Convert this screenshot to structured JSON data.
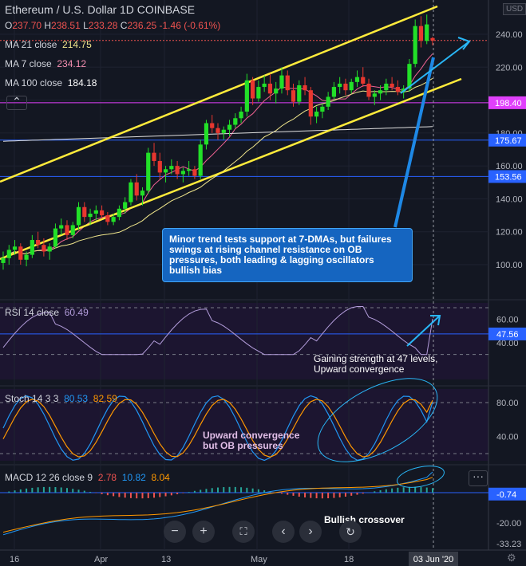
{
  "header": {
    "title": "Ethereum / U.S. Dollar  1D  COINBASE",
    "currency": "USD",
    "ohlc": {
      "o": "237.70",
      "h": "238.51",
      "l": "233.28",
      "c": "236.25",
      "chg": "-1.46 (-0.61%)"
    }
  },
  "indicators": {
    "ma21": {
      "label": "MA 21 close",
      "value": "214.75"
    },
    "ma7": {
      "label": "MA 7 close",
      "value": "234.12"
    },
    "ma100": {
      "label": "MA 100 close",
      "value": "184.18"
    },
    "rsi": {
      "label": "RSI 14 close",
      "value": "60.49"
    },
    "stoch": {
      "label": "Stoch 14 3 3",
      "k": "80.53",
      "d": "82.59"
    },
    "macd": {
      "label": "MACD 12 26 close 9",
      "a": "2.78",
      "b": "10.82",
      "c": "8.04"
    }
  },
  "annotations": {
    "main": "Minor trend tests support at 7-DMAs, but failures swings at rising channel resistance on OB pressures, both leading & lagging oscillators bullish bias",
    "rsi": "Gaining strength at 47 levels, Upward convergence",
    "stoch": "Upward convergence but OB pressures",
    "macd": "Bullish crossover"
  },
  "price_axis": {
    "ticks": [
      "240.00",
      "220.00",
      "200.00",
      "180.00",
      "160.00",
      "140.00",
      "120.00",
      "100.00"
    ],
    "markers": [
      {
        "label": "198.40",
        "color": "#e040fb"
      },
      {
        "label": "175.67",
        "color": "#2962ff"
      },
      {
        "label": "153.56",
        "color": "#2962ff"
      }
    ],
    "last_price": "236.25"
  },
  "rsi_axis": {
    "ticks": [
      "60.00",
      "40.00"
    ],
    "marker": "47.56"
  },
  "stoch_axis": {
    "ticks": [
      "80.00",
      "40.00"
    ]
  },
  "macd_axis": {
    "ticks": [
      "-20.00"
    ],
    "marker": "-0.74",
    "bottom": "-33.23"
  },
  "time_axis": {
    "labels": [
      "16",
      "Apr",
      "13",
      "May",
      "18"
    ],
    "current": "03 Jun '20"
  },
  "controls": [
    "minus",
    "plus",
    "fullscreen",
    "prev",
    "next",
    "reset"
  ],
  "colors": {
    "up": "#26a69a",
    "down": "#ef5350",
    "bull_body": "#22e028",
    "bear_body": "#e8372f",
    "channel": "#ffeb3b",
    "annotation": "#1565c0",
    "cyan": "#29b6f6",
    "rsi": "#b39ddb"
  },
  "chart_data": {
    "type": "candlestick",
    "title": "Ethereum / U.S. Dollar 1D COINBASE",
    "ylim": [
      85,
      255
    ],
    "candles": [
      [
        101,
        108,
        97,
        104
      ],
      [
        104,
        112,
        100,
        109
      ],
      [
        109,
        115,
        106,
        111
      ],
      [
        111,
        113,
        100,
        103
      ],
      [
        103,
        108,
        99,
        106
      ],
      [
        106,
        118,
        104,
        115
      ],
      [
        115,
        120,
        110,
        112
      ],
      [
        112,
        116,
        105,
        108
      ],
      [
        108,
        113,
        103,
        111
      ],
      [
        111,
        125,
        110,
        122
      ],
      [
        122,
        128,
        118,
        124
      ],
      [
        124,
        127,
        115,
        118
      ],
      [
        118,
        126,
        116,
        124
      ],
      [
        124,
        138,
        121,
        135
      ],
      [
        135,
        138,
        126,
        129
      ],
      [
        129,
        134,
        124,
        131
      ],
      [
        131,
        136,
        127,
        133
      ],
      [
        133,
        136,
        128,
        130
      ],
      [
        130,
        132,
        124,
        126
      ],
      [
        126,
        131,
        124,
        129
      ],
      [
        129,
        136,
        127,
        134
      ],
      [
        134,
        141,
        131,
        138
      ],
      [
        138,
        152,
        136,
        150
      ],
      [
        150,
        155,
        139,
        142
      ],
      [
        142,
        147,
        136,
        145
      ],
      [
        145,
        171,
        143,
        168
      ],
      [
        168,
        174,
        160,
        163
      ],
      [
        163,
        168,
        152,
        156
      ],
      [
        156,
        160,
        150,
        158
      ],
      [
        158,
        164,
        155,
        160
      ],
      [
        160,
        163,
        152,
        155
      ],
      [
        155,
        159,
        150,
        157
      ],
      [
        157,
        163,
        154,
        158
      ],
      [
        158,
        160,
        152,
        154
      ],
      [
        154,
        176,
        152,
        173
      ],
      [
        173,
        188,
        170,
        186
      ],
      [
        186,
        191,
        180,
        183
      ],
      [
        183,
        186,
        176,
        180
      ],
      [
        180,
        184,
        176,
        182
      ],
      [
        182,
        188,
        178,
        185
      ],
      [
        185,
        192,
        183,
        189
      ],
      [
        189,
        196,
        186,
        193
      ],
      [
        193,
        216,
        190,
        212
      ],
      [
        212,
        214,
        197,
        201
      ],
      [
        201,
        212,
        199,
        208
      ],
      [
        208,
        215,
        205,
        210
      ],
      [
        210,
        216,
        200,
        204
      ],
      [
        204,
        211,
        198,
        207
      ],
      [
        207,
        220,
        204,
        215
      ],
      [
        215,
        218,
        203,
        206
      ],
      [
        206,
        210,
        196,
        199
      ],
      [
        199,
        212,
        197,
        209
      ],
      [
        209,
        214,
        203,
        206
      ],
      [
        206,
        208,
        185,
        190
      ],
      [
        190,
        196,
        186,
        193
      ],
      [
        193,
        198,
        189,
        196
      ],
      [
        196,
        205,
        194,
        202
      ],
      [
        202,
        211,
        200,
        208
      ],
      [
        208,
        214,
        204,
        210
      ],
      [
        210,
        213,
        203,
        206
      ],
      [
        206,
        213,
        204,
        211
      ],
      [
        211,
        218,
        208,
        214
      ],
      [
        214,
        220,
        208,
        210
      ],
      [
        210,
        213,
        200,
        202
      ],
      [
        202,
        206,
        197,
        204
      ],
      [
        204,
        209,
        200,
        206
      ],
      [
        206,
        213,
        203,
        210
      ],
      [
        210,
        214,
        206,
        208
      ],
      [
        208,
        212,
        203,
        205
      ],
      [
        205,
        209,
        201,
        207
      ],
      [
        207,
        225,
        205,
        222
      ],
      [
        222,
        249,
        220,
        245
      ],
      [
        245,
        251,
        232,
        236
      ],
      [
        236,
        252,
        234,
        246
      ],
      [
        237.7,
        238.51,
        233.28,
        236.25
      ]
    ]
  }
}
